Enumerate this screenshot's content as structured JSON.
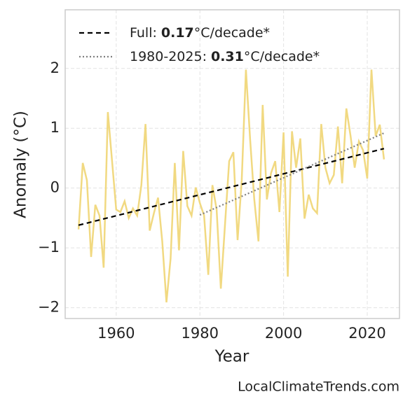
{
  "chart_data": {
    "type": "line",
    "xlabel": "Year",
    "ylabel": "Anomaly (°C)",
    "watermark": "LocalClimateTrends.com",
    "xlim": [
      1947.8,
      2027.7
    ],
    "ylim": [
      -2.18,
      2.98
    ],
    "xticks": [
      1960,
      1980,
      2000,
      2020
    ],
    "yticks": [
      {
        "value": -2,
        "label": "−2"
      },
      {
        "value": -1,
        "label": "−1"
      },
      0,
      1,
      2
    ],
    "grid": true,
    "legend": "upper left",
    "series": [
      {
        "color": "#f0d77a",
        "x": [
          1951,
          1952,
          1953,
          1954,
          1955,
          1956,
          1957,
          1958,
          1959,
          1960,
          1961,
          1962,
          1963,
          1964,
          1965,
          1966,
          1967,
          1968,
          1969,
          1970,
          1971,
          1972,
          1973,
          1974,
          1975,
          1976,
          1977,
          1978,
          1979,
          1980,
          1981,
          1982,
          1983,
          1984,
          1985,
          1986,
          1987,
          1988,
          1989,
          1990,
          1991,
          1992,
          1993,
          1994,
          1995,
          1996,
          1997,
          1998,
          1999,
          2000,
          2001,
          2002,
          2003,
          2004,
          2005,
          2006,
          2007,
          2008,
          2009,
          2010,
          2011,
          2012,
          2013,
          2014,
          2015,
          2016,
          2017,
          2018,
          2019,
          2020,
          2021,
          2022,
          2023,
          2024
        ],
        "values": [
          -0.69,
          0.42,
          0.13,
          -1.15,
          -0.28,
          -0.46,
          -1.33,
          1.27,
          0.45,
          -0.36,
          -0.4,
          -0.22,
          -0.5,
          -0.34,
          -0.46,
          0.05,
          1.07,
          -0.71,
          -0.42,
          -0.16,
          -0.89,
          -1.91,
          -1.18,
          0.42,
          -1.04,
          0.62,
          -0.3,
          -0.46,
          0.01,
          -0.25,
          -0.46,
          -1.45,
          0.05,
          -0.36,
          -1.68,
          -0.6,
          0.45,
          0.6,
          -0.87,
          0.13,
          1.98,
          0.81,
          -0.19,
          -0.89,
          1.39,
          -0.19,
          0.25,
          0.45,
          -0.4,
          0.93,
          -1.48,
          0.95,
          0.34,
          0.83,
          -0.51,
          -0.11,
          -0.34,
          -0.42,
          1.07,
          0.34,
          0.08,
          0.22,
          1.03,
          0.08,
          1.33,
          0.87,
          0.34,
          0.78,
          0.63,
          0.16,
          1.98,
          0.87,
          1.06,
          0.48
        ]
      },
      {
        "name": "Full:",
        "rate": "0.17",
        "unit": "°C/decade*",
        "color": "#000000",
        "dash": "7 5",
        "x": [
          1951,
          2024
        ],
        "values": [
          -0.62,
          0.66
        ]
      },
      {
        "name": "1980-2025:",
        "rate": "0.31",
        "unit": "°C/decade*",
        "color": "#808080",
        "dash": "2 3",
        "x": [
          1980,
          2024
        ],
        "values": [
          -0.45,
          0.92
        ]
      }
    ]
  }
}
